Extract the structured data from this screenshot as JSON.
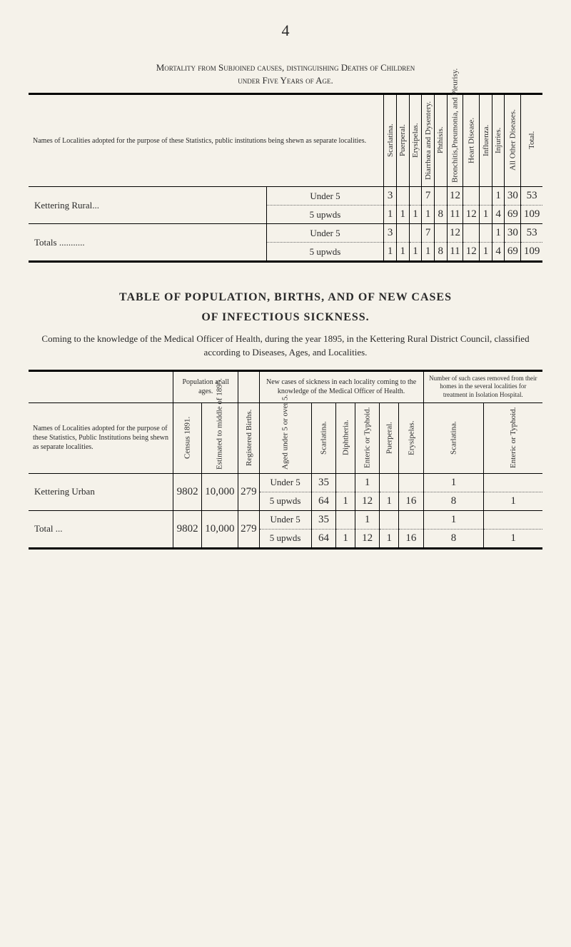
{
  "page_number": "4",
  "table1": {
    "title_line1": "Mortality from Subjoined causes, distinguishing Deaths of Children",
    "title_line2": "under Five Years of Age.",
    "row_header_desc": "Names of Localities adopted for the purpose of these Statistics, public institutions being shewn as separate localities.",
    "columns": [
      "Scarlatina.",
      "Puerperal.",
      "Erysipelas.",
      "Diarrhœa and Dysentery.",
      "Phthisis.",
      "Bronchitis,Pneumonia, and Pleurisy.",
      "Heart Disease.",
      "Influenza.",
      "Injuries.",
      "All Other Diseases.",
      "Total."
    ],
    "rows": [
      {
        "label": "Kettering Rural...",
        "sub1_label": "Under 5",
        "sub1_values": [
          "3",
          "",
          "",
          "7",
          "",
          "12",
          "",
          "",
          "1",
          "30",
          "53"
        ],
        "sub2_label": "5 upwds",
        "sub2_values": [
          "1",
          "1",
          "1",
          "1",
          "8",
          "11",
          "12",
          "1",
          "4",
          "69",
          "109"
        ]
      },
      {
        "label": "Totals ...........",
        "sub1_label": "Under 5",
        "sub1_values": [
          "3",
          "",
          "",
          "7",
          "",
          "12",
          "",
          "",
          "1",
          "30",
          "53"
        ],
        "sub2_label": "5 upwds",
        "sub2_values": [
          "1",
          "1",
          "1",
          "1",
          "8",
          "11",
          "12",
          "1",
          "4",
          "69",
          "109"
        ]
      }
    ]
  },
  "table2": {
    "title": "TABLE OF POPULATION, BIRTHS, AND OF NEW CASES",
    "subtitle": "OF INFECTIOUS SICKNESS.",
    "description": "Coming to the knowledge of the Medical Officer of Health, during the year 1895, in the Kettering Rural District Council, classified according to Diseases, Ages, and Localities.",
    "header_groups": {
      "pop": "Population\nat\nall ages.",
      "newcases": "New cases of sickness in each locality coming to the knowledge of the Medical Officer of Health.",
      "removed": "Number of such cases removed from their homes in the several localities for treatment in Isolation Hospital."
    },
    "row_header_desc": "Names of Localities adopted for the purpose of these Statistics, Public Institutions being shewn as separate localities.",
    "columns": [
      "Census 1891.",
      "Estimated to middle of 1895.",
      "Registered Births.",
      "Aged under 5 or over 5.",
      "Scarlatina.",
      "Diphtheria.",
      "Enteric or Typhoid.",
      "Puerperal.",
      "Erysipelas.",
      "Scarlatina.",
      "Enteric or Typhoid."
    ],
    "rows": [
      {
        "label": "Kettering Urban",
        "census": "9802",
        "estimated": "10,000",
        "births": "279",
        "sub1_label": "Under 5",
        "sub1_values": [
          "35",
          "",
          "1",
          "",
          "",
          "1",
          ""
        ],
        "sub2_label": "5 upwds",
        "sub2_values": [
          "64",
          "1",
          "12",
          "1",
          "16",
          "8",
          "1"
        ]
      },
      {
        "label": "Total ...",
        "census": "9802",
        "estimated": "10,000",
        "births": "279",
        "sub1_label": "Under 5",
        "sub1_values": [
          "35",
          "",
          "1",
          "",
          "",
          "1",
          ""
        ],
        "sub2_label": "5 upwds",
        "sub2_values": [
          "64",
          "1",
          "12",
          "1",
          "16",
          "8",
          "1"
        ]
      }
    ]
  }
}
